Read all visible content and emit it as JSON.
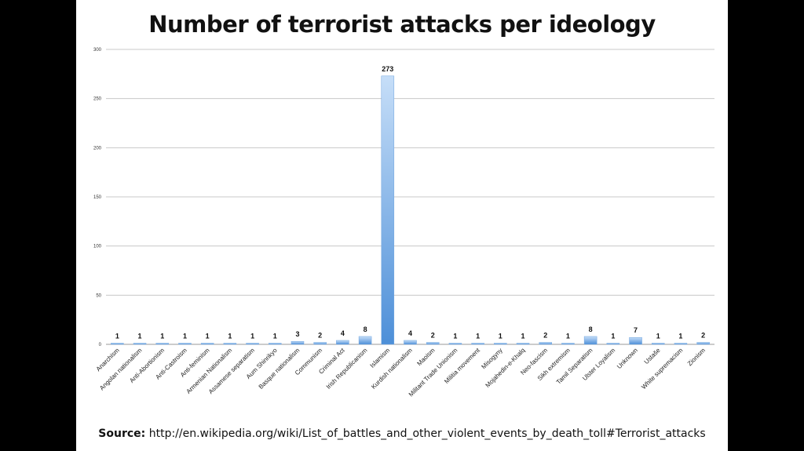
{
  "chart_data": {
    "type": "bar",
    "title": "Number of terrorist attacks per ideology",
    "xlabel": "",
    "ylabel": "",
    "ylim": [
      0,
      300
    ],
    "yticks": [
      0,
      50,
      100,
      150,
      200,
      250,
      300
    ],
    "grid": true,
    "legend": "none",
    "bar_color": "#5b9ee0",
    "categories": [
      "Anarchism",
      "Angolan nationalism",
      "Anti-Abortionism",
      "Anti-Castroism",
      "Anti-feminism",
      "Armenian Nationalism",
      "Assamese separatism",
      "Aum Shinrikyo",
      "Basque nationalism",
      "Communism",
      "Criminal Act",
      "Irish Republicanism",
      "Islamism",
      "Kurdish nationalism",
      "Maoism",
      "Militant Trade Unionism",
      "Militia movement",
      "Misogyny",
      "Mojahedin-e-Khalq",
      "Neo-fascism",
      "Sikh extremism",
      "Tamil Separatism",
      "Ulster Loyalism",
      "Unknown",
      "Ustaše",
      "White supremacism",
      "Zionism"
    ],
    "values": [
      1,
      1,
      1,
      1,
      1,
      1,
      1,
      1,
      3,
      2,
      4,
      8,
      273,
      4,
      2,
      1,
      1,
      1,
      1,
      2,
      1,
      8,
      1,
      7,
      1,
      1,
      2
    ]
  },
  "source": {
    "label": "Source:",
    "text": "http://en.wikipedia.org/wiki/List_of_battles_and_other_violent_events_by_death_toll#Terrorist_attacks"
  }
}
